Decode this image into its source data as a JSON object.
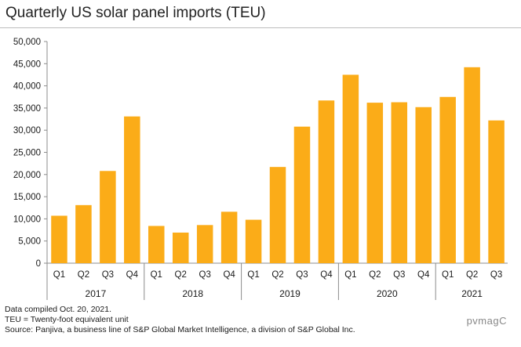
{
  "title": "Quarterly US solar panel imports (TEU)",
  "notes": [
    "Data compiled Oct. 20, 2021.",
    "TEU = Twenty-foot equivalent unit",
    "Source: Panjiva, a business line of S&P Global Market Intelligence, a division of S&P Global Inc."
  ],
  "watermark": "pvmagC",
  "colors": {
    "bar": "#FBAC18",
    "axis": "#8c8c8c"
  },
  "chart_data": {
    "type": "bar",
    "title": "Quarterly US solar panel imports (TEU)",
    "ylim": [
      0,
      50000
    ],
    "yticks": [
      0,
      5000,
      10000,
      15000,
      20000,
      25000,
      30000,
      35000,
      40000,
      45000,
      50000
    ],
    "ytick_labels": [
      "0",
      "5,000",
      "10,000",
      "15,000",
      "20,000",
      "25,000",
      "30,000",
      "35,000",
      "40,000",
      "45,000",
      "50,000"
    ],
    "grid": false,
    "legend": "none",
    "groups": [
      {
        "name": "2017",
        "categories": [
          "Q1",
          "Q2",
          "Q3",
          "Q4"
        ],
        "values": [
          10700,
          13100,
          20800,
          33100
        ]
      },
      {
        "name": "2018",
        "categories": [
          "Q1",
          "Q2",
          "Q3",
          "Q4"
        ],
        "values": [
          8400,
          6900,
          8600,
          11600
        ]
      },
      {
        "name": "2019",
        "categories": [
          "Q1",
          "Q2",
          "Q3",
          "Q4"
        ],
        "values": [
          9800,
          21700,
          30800,
          36700
        ]
      },
      {
        "name": "2020",
        "categories": [
          "Q1",
          "Q2",
          "Q3",
          "Q4"
        ],
        "values": [
          42500,
          36200,
          36300,
          35200
        ]
      },
      {
        "name": "2021",
        "categories": [
          "Q1",
          "Q2",
          "Q3"
        ],
        "values": [
          37500,
          44200,
          32200
        ]
      }
    ]
  }
}
